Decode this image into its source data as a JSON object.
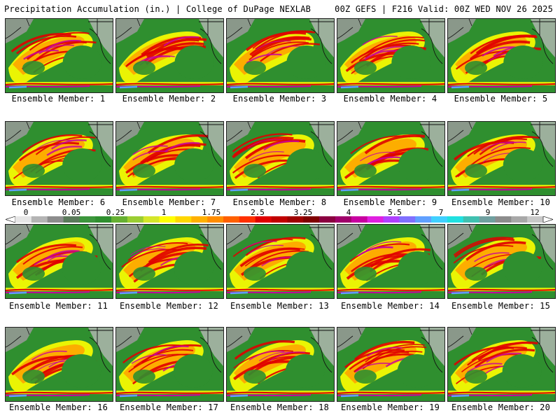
{
  "header": {
    "title_left": "Precipitation Accumulation (in.) | College of DuPage NEXLAB",
    "title_right": "00Z GEFS | F216 Valid: 00Z WED NOV 26 2025"
  },
  "member_prefix": "Ensemble Member: ",
  "members": [
    {
      "label": "Ensemble Member: 1"
    },
    {
      "label": "Ensemble Member: 2"
    },
    {
      "label": "Ensemble Member: 3"
    },
    {
      "label": "Ensemble Member: 4"
    },
    {
      "label": "Ensemble Member: 5"
    },
    {
      "label": "Ensemble Member: 6"
    },
    {
      "label": "Ensemble Member: 7"
    },
    {
      "label": "Ensemble Member: 8"
    },
    {
      "label": "Ensemble Member: 9"
    },
    {
      "label": "Ensemble Member: 10"
    },
    {
      "label": "Ensemble Member: 11"
    },
    {
      "label": "Ensemble Member: 12"
    },
    {
      "label": "Ensemble Member: 13"
    },
    {
      "label": "Ensemble Member: 14"
    },
    {
      "label": "Ensemble Member: 15"
    },
    {
      "label": "Ensemble Member: 16"
    },
    {
      "label": "Ensemble Member: 17"
    },
    {
      "label": "Ensemble Member: 18"
    },
    {
      "label": "Ensemble Member: 19"
    },
    {
      "label": "Ensemble Member: 20"
    }
  ],
  "colorbar": {
    "tick_labels": [
      "0",
      "0.05",
      "0.25",
      "1",
      "1.75",
      "2.5",
      "3.25",
      "4",
      "5.5",
      "7",
      "9",
      "12"
    ],
    "colors": [
      "#e6e6e6",
      "#b4b4b4",
      "#8c8c8c",
      "#5a7a5a",
      "#3c963c",
      "#2f8f2f",
      "#66b032",
      "#9acd32",
      "#d4e62a",
      "#ffff00",
      "#ffd700",
      "#ffb000",
      "#ff8c00",
      "#ff6000",
      "#ff3000",
      "#e00000",
      "#c00000",
      "#a00000",
      "#800000",
      "#8b0040",
      "#a0006a",
      "#c800a0",
      "#e020e0",
      "#b040ff",
      "#8070ff",
      "#60a0ff",
      "#40d0ff",
      "#20e0e0",
      "#40c0b0",
      "#70a0a0",
      "#8c8c8c",
      "#a8a8a8",
      "#c8c8c8"
    ]
  },
  "palette": {
    "land_green": "#2f8f2f",
    "snow_gray": "#b8b8b8",
    "border": "#111111"
  }
}
